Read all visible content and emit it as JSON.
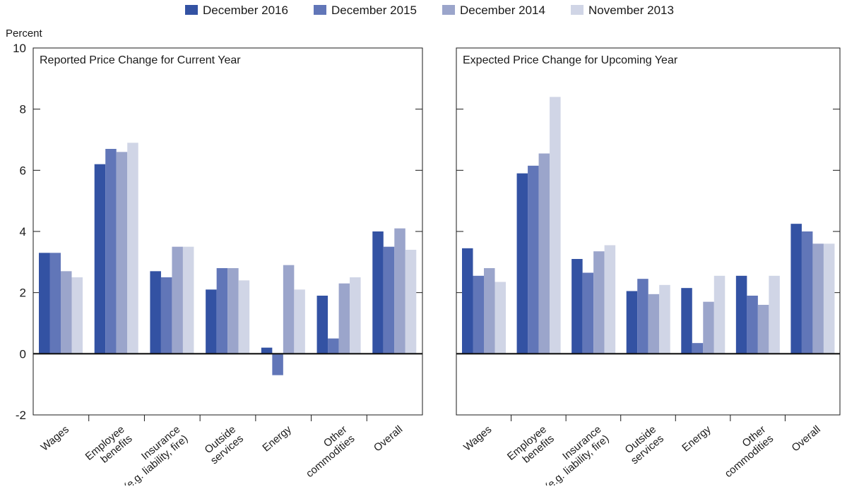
{
  "legend": [
    "December 2016",
    "December 2015",
    "December 2014",
    "November 2013"
  ],
  "unit_label": "Percent",
  "colors": [
    "#3352a3",
    "#6176b8",
    "#9ba5cb",
    "#d0d5e6"
  ],
  "chart_data": [
    {
      "type": "bar",
      "title": "Reported Price Change for Current Year",
      "categories": [
        "Wages",
        "Employee\nbenefits",
        "Insurance\n(e.g. liability, fire)",
        "Outside\nservices",
        "Energy",
        "Other\ncommodities",
        "Overall"
      ],
      "ylim": [
        -2,
        10
      ],
      "yticks": [
        -2,
        0,
        2,
        4,
        6,
        8,
        10
      ],
      "ylabel": "Percent",
      "series": [
        {
          "name": "December 2016",
          "values": [
            3.3,
            6.2,
            2.7,
            2.1,
            0.2,
            1.9,
            4.0
          ]
        },
        {
          "name": "December 2015",
          "values": [
            3.3,
            6.7,
            2.5,
            2.8,
            -0.7,
            0.5,
            3.5
          ]
        },
        {
          "name": "December 2014",
          "values": [
            2.7,
            6.6,
            3.5,
            2.8,
            2.9,
            2.3,
            4.1
          ]
        },
        {
          "name": "November 2013",
          "values": [
            2.5,
            6.9,
            3.5,
            2.4,
            2.1,
            2.5,
            3.4
          ]
        }
      ]
    },
    {
      "type": "bar",
      "title": "Expected Price Change for Upcoming Year",
      "categories": [
        "Wages",
        "Employee\nbenefits",
        "Insurance\n(e.g. liability, fire)",
        "Outside\nservices",
        "Energy",
        "Other\ncommodities",
        "Overall"
      ],
      "ylim": [
        -2,
        10
      ],
      "series": [
        {
          "name": "December 2016",
          "values": [
            3.45,
            5.9,
            3.1,
            2.05,
            2.15,
            2.55,
            4.25
          ]
        },
        {
          "name": "December 2015",
          "values": [
            2.55,
            6.15,
            2.65,
            2.45,
            0.35,
            1.9,
            4.0
          ]
        },
        {
          "name": "December 2014",
          "values": [
            2.8,
            6.55,
            3.35,
            1.95,
            1.7,
            1.6,
            3.6
          ]
        },
        {
          "name": "November 2013",
          "values": [
            2.35,
            8.4,
            3.55,
            2.25,
            2.55,
            2.55,
            3.6
          ]
        }
      ]
    }
  ]
}
